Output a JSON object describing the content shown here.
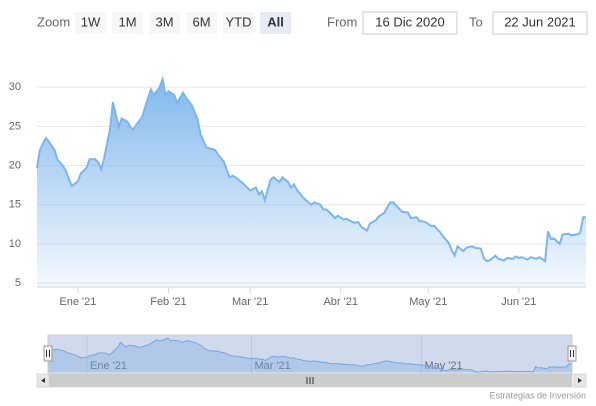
{
  "range_selector": {
    "zoom_label": "Zoom",
    "buttons": [
      "1W",
      "1M",
      "3M",
      "6M",
      "YTD",
      "All"
    ],
    "selected": 5,
    "from_label": "From",
    "from_value": "16 Dic 2020",
    "to_label": "To",
    "to_value": "22 Jun 2021"
  },
  "credits": "Estrategias de Inversión",
  "chart_data": {
    "type": "area",
    "color": "#7cb5ec",
    "grid": true,
    "x": [
      2,
      3,
      5,
      6,
      8,
      9,
      11,
      12,
      13,
      14,
      16,
      17,
      19,
      20,
      22,
      23,
      24,
      25,
      27,
      28,
      30,
      31,
      33,
      34,
      35,
      36,
      38,
      39,
      41,
      42,
      44,
      45,
      46,
      47,
      49,
      50,
      52,
      53,
      55,
      56,
      57,
      58,
      60,
      61,
      63,
      64,
      66,
      67,
      68,
      69,
      71,
      72,
      74,
      75,
      77,
      78,
      79,
      80,
      82,
      83,
      85,
      86,
      88,
      89,
      90,
      91,
      93,
      94,
      96,
      97,
      99,
      100,
      101,
      102,
      104,
      105,
      107,
      108,
      110,
      111,
      112,
      113,
      115,
      116,
      118,
      119,
      121,
      122,
      123,
      124,
      126,
      127,
      129,
      130,
      132,
      133,
      134,
      135,
      137,
      138,
      140,
      141,
      143,
      144,
      145,
      146,
      148,
      149,
      151,
      152,
      154,
      155,
      156,
      157,
      159,
      160,
      162,
      163,
      165,
      166,
      167,
      168,
      170,
      171,
      173,
      174,
      176,
      177,
      178,
      179,
      181,
      182,
      184,
      185,
      187,
      188,
      189,
      190
    ],
    "values": [
      19.7,
      22,
      23.5,
      23.1,
      22,
      20.8,
      19.9,
      19.2,
      18.2,
      17.4,
      18,
      19,
      19.7,
      20.8,
      20.8,
      20.4,
      19.5,
      21,
      24.6,
      28.1,
      24.9,
      26,
      25.6,
      24.9,
      24.6,
      25.2,
      26.2,
      27.4,
      29.7,
      29,
      30,
      31,
      29,
      29.5,
      29,
      28,
      29.3,
      28.7,
      27.7,
      26.8,
      25.9,
      24,
      22.3,
      22.2,
      22,
      21.4,
      20.5,
      19.4,
      18.5,
      18.7,
      18.2,
      17.9,
      17.2,
      16.8,
      17.2,
      16.3,
      16.7,
      15.6,
      18.2,
      18.5,
      17.9,
      18.5,
      17.9,
      17.2,
      17.6,
      16.9,
      16,
      15.6,
      15,
      15.3,
      15,
      14.4,
      14.4,
      14.1,
      13.3,
      13.6,
      13.1,
      13.2,
      12.8,
      12.7,
      12.8,
      12.2,
      11.7,
      12.6,
      13,
      13.5,
      14,
      14.7,
      15.3,
      15.3,
      14.5,
      14.1,
      14,
      13.3,
      13.4,
      12.9,
      12.9,
      12.8,
      12.3,
      12.3,
      11.5,
      11,
      10.1,
      9.2,
      8.5,
      9.7,
      9.1,
      9.5,
      9.7,
      9.5,
      9.4,
      8.2,
      7.8,
      7.9,
      8.5,
      8.1,
      7.9,
      8.2,
      8.1,
      8.4,
      8.2,
      8.3,
      8.0,
      8.3,
      8.1,
      8.3,
      7.8,
      11.6,
      10.6,
      10.7,
      10.0,
      11.2,
      11.3,
      11.1,
      11.2,
      11.4,
      13.4,
      13.4
    ],
    "xlim": [
      2,
      190
    ],
    "xticks": [
      {
        "value": 16,
        "label": "Ene '21"
      },
      {
        "value": 47,
        "label": "Feb '21"
      },
      {
        "value": 75,
        "label": "Mar '21"
      },
      {
        "value": 106,
        "label": "Abr '21"
      },
      {
        "value": 136,
        "label": "May '21"
      },
      {
        "value": 167,
        "label": "Jun '21"
      }
    ],
    "ylim": [
      4.5,
      35
    ],
    "yticks": [
      5,
      10,
      15,
      20,
      25,
      30
    ]
  }
}
